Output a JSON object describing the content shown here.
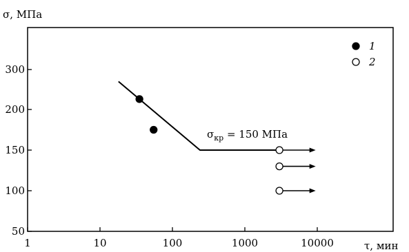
{
  "chart_data": {
    "type": "scatter",
    "ylabel": "σ, МПа",
    "xlabel": "τ, мин",
    "x_scale": "log",
    "xlim": [
      1,
      10000
    ],
    "ylim": [
      50,
      350
    ],
    "x_ticks": [
      1,
      10,
      100,
      1000,
      10000
    ],
    "x_tick_labels": [
      "1",
      "10",
      "100",
      "1000",
      "10000"
    ],
    "y_ticks": [
      50,
      100,
      150,
      200,
      300
    ],
    "y_tick_labels": [
      "50",
      "100",
      "150",
      "200",
      "300"
    ],
    "grid": false,
    "legend_position": "top-right",
    "series": [
      {
        "name": "1",
        "marker": "filled-circle",
        "points": [
          {
            "x": 35,
            "y": 226
          },
          {
            "x": 55,
            "y": 175
          }
        ]
      },
      {
        "name": "2",
        "marker": "open-circle",
        "points": [
          {
            "x": 3000,
            "y": 150
          },
          {
            "x": 3000,
            "y": 130
          },
          {
            "x": 3000,
            "y": 100
          }
        ],
        "arrow_to_x": 9500
      }
    ],
    "lines": [
      {
        "points": [
          {
            "x": 18,
            "y": 270
          },
          {
            "x": 240,
            "y": 150
          },
          {
            "x": 3000,
            "y": 150
          }
        ]
      }
    ],
    "annotation": {
      "sigma": "σ",
      "subscript": "кр",
      "rest": " = 150 МПа",
      "x": 550,
      "y": 163
    }
  }
}
